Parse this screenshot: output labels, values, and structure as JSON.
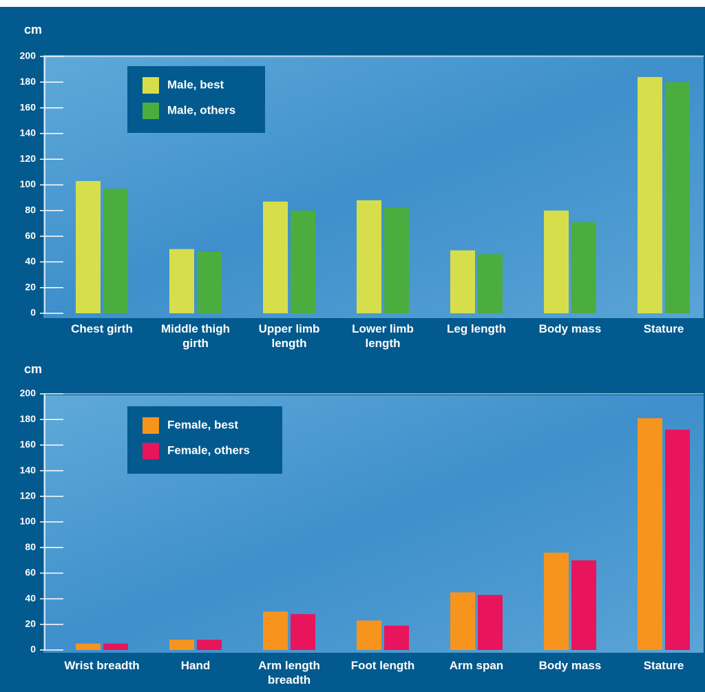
{
  "chart_data": [
    {
      "type": "bar",
      "y_label": "cm",
      "categories": [
        "Chest girth",
        "Middle thigh girth",
        "Upper limb length",
        "Lower limb length",
        "Leg length",
        "Body mass",
        "Stature"
      ],
      "series": [
        {
          "name": "Male, best",
          "color": "#d6df4b",
          "values": [
            103,
            50,
            87,
            88,
            49,
            80,
            184
          ]
        },
        {
          "name": "Male, others",
          "color": "#4cad3f",
          "values": [
            97,
            48,
            80,
            82,
            46,
            71,
            180
          ]
        }
      ],
      "ylim": [
        0,
        200
      ],
      "yticks": [
        0,
        20,
        40,
        60,
        80,
        100,
        120,
        140,
        160,
        180,
        200
      ]
    },
    {
      "type": "bar",
      "y_label": "cm",
      "categories": [
        "Wrist breadth",
        "Hand",
        "Arm length breadth",
        "Foot length",
        "Arm span",
        "Body mass",
        "Stature"
      ],
      "series": [
        {
          "name": "Female, best",
          "color": "#f7941e",
          "values": [
            5,
            8,
            30,
            23,
            45,
            76,
            181
          ]
        },
        {
          "name": "Female, others",
          "color": "#e8145c",
          "values": [
            5,
            8,
            28,
            19,
            43,
            70,
            172
          ]
        }
      ],
      "ylim": [
        0,
        200
      ],
      "yticks": [
        0,
        20,
        40,
        60,
        80,
        100,
        120,
        140,
        160,
        180,
        200
      ]
    }
  ]
}
